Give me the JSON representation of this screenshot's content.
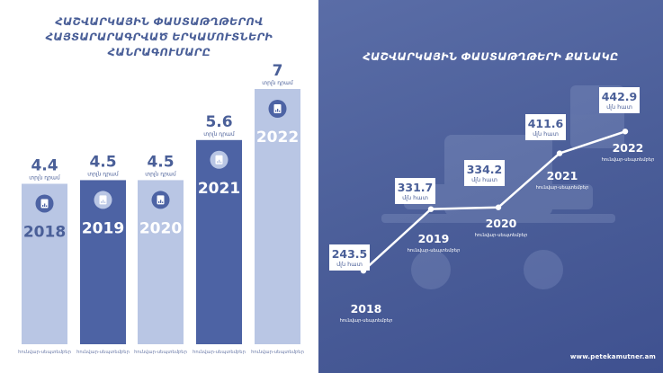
{
  "left_panel": {
    "title_line1": "ՀԱՇՎԱՐԿԱՅԻՆ ՓԱՍՏԱԹՂԹԵՐՈՎ",
    "title_line2": "ՀԱՅՏԱՐԱՐԱԳՐՎԱԾ ԵՐԿԱՄՈՒՏՆԵՐԻ ՀԱՆՐԱԳՈՒՄԱՐԸ"
  },
  "right_panel": {
    "title": "ՀԱՇՎԱՐԿԱՅԻՆ ՓԱՍՏԱԹՂԹԵՐԻ ՔԱՆԱԿԸ",
    "website": "www.petekamutner.am"
  },
  "icon": "document-chart-icon",
  "colors": {
    "bar_light": "#b9c6e4",
    "bar_dark": "#4d63a4",
    "accent": "#4a5f98",
    "white": "#ffffff"
  },
  "chart_data": [
    {
      "type": "bar",
      "categories": [
        "2018",
        "2019",
        "2020",
        "2021",
        "2022"
      ],
      "values": [
        4.4,
        4.5,
        4.5,
        5.6,
        7
      ],
      "value_labels": [
        "4.4",
        "4.5",
        "4.5",
        "5.6",
        "7"
      ],
      "unit_label": "տրլն դրամ",
      "period_label": "հունվար-սեպտեմբեր",
      "ylim": [
        0,
        7
      ],
      "grid": false,
      "legend": "none"
    },
    {
      "type": "line",
      "x": [
        "2018",
        "2019",
        "2020",
        "2021",
        "2022"
      ],
      "values": [
        243.5,
        331.7,
        334.2,
        411.6,
        442.9
      ],
      "value_labels": [
        "243.5",
        "331.7",
        "334.2",
        "411.6",
        "442.9"
      ],
      "unit_label": "մլն հատ",
      "period_label": "հունվար-սեպտեմբեր",
      "ylim": [
        200,
        460
      ],
      "grid": false,
      "legend": "none"
    }
  ]
}
